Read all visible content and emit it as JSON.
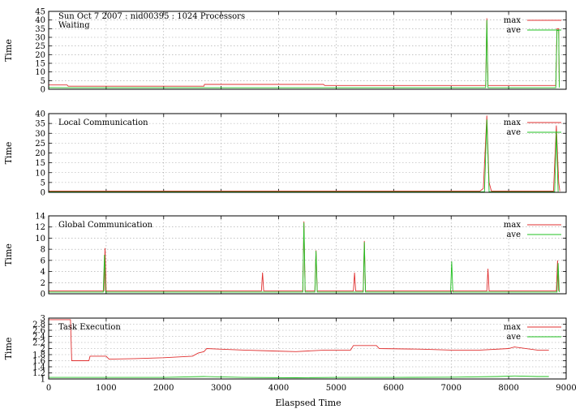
{
  "figure": {
    "header": "Sun Oct 7 2007 : nid00395 : 1024 Processors",
    "xlabel": "Elaspsed Time",
    "x_ticks": [
      "0",
      "1000",
      "2000",
      "3000",
      "4000",
      "5000",
      "6000",
      "7000",
      "8000",
      "9000"
    ]
  },
  "colors": {
    "max": "#e03030",
    "ave": "#20c020",
    "grid": "#a0a0a0"
  },
  "chart_data": [
    {
      "type": "line",
      "title": "Waiting",
      "xlabel": "Elaspsed Time",
      "ylabel": "Time",
      "xlim": [
        0,
        9000
      ],
      "ylim": [
        0,
        45
      ],
      "y_ticks": [
        "0",
        "5",
        "10",
        "15",
        "20",
        "25",
        "30",
        "35",
        "40",
        "45"
      ],
      "legend": "top-right",
      "grid": true,
      "series": [
        {
          "name": "max",
          "points": [
            [
              0,
              2.5
            ],
            [
              320,
              2.5
            ],
            [
              340,
              1.8
            ],
            [
              2700,
              1.8
            ],
            [
              2710,
              2.8
            ],
            [
              4780,
              2.8
            ],
            [
              4800,
              2.2
            ],
            [
              7600,
              2.2
            ],
            [
              7620,
              41
            ],
            [
              7640,
              2.2
            ],
            [
              8820,
              2.2
            ],
            [
              8840,
              35
            ],
            [
              8870,
              35
            ],
            [
              8880,
              2.5
            ]
          ]
        },
        {
          "name": "ave",
          "points": [
            [
              0,
              1.0
            ],
            [
              340,
              0.9
            ],
            [
              7600,
              0.9
            ],
            [
              7620,
              40
            ],
            [
              7640,
              0.9
            ],
            [
              8820,
              0.9
            ],
            [
              8840,
              34
            ],
            [
              8870,
              34
            ],
            [
              8880,
              1
            ]
          ]
        }
      ],
      "annotations": [
        "Sun Oct 7 2007 : nid00395 : 1024 Processors",
        "Waiting"
      ]
    },
    {
      "type": "line",
      "title": "Local Communication",
      "xlabel": "Elaspsed Time",
      "ylabel": "Time",
      "xlim": [
        0,
        9000
      ],
      "ylim": [
        0,
        40
      ],
      "y_ticks": [
        "0",
        "5",
        "10",
        "15",
        "20",
        "25",
        "30",
        "35",
        "40"
      ],
      "legend": "top-right",
      "grid": true,
      "series": [
        {
          "name": "max",
          "points": [
            [
              0,
              0.6
            ],
            [
              7500,
              0.6
            ],
            [
              7560,
              2
            ],
            [
              7620,
              39
            ],
            [
              7660,
              5
            ],
            [
              7700,
              0.6
            ],
            [
              8780,
              0.6
            ],
            [
              8830,
              34
            ],
            [
              8870,
              5
            ],
            [
              8890,
              0.6
            ]
          ]
        },
        {
          "name": "ave",
          "points": [
            [
              0,
              0.3
            ],
            [
              7580,
              0.3
            ],
            [
              7620,
              37
            ],
            [
              7660,
              0.3
            ],
            [
              8800,
              0.3
            ],
            [
              8830,
              31
            ],
            [
              8860,
              0.3
            ]
          ]
        }
      ],
      "annotations": [
        "Local Communication"
      ]
    },
    {
      "type": "line",
      "title": "Global Communication",
      "xlabel": "Elaspsed Time",
      "ylabel": "Time",
      "xlim": [
        0,
        9000
      ],
      "ylim": [
        0,
        14
      ],
      "y_ticks": [
        "0",
        "2",
        "4",
        "6",
        "8",
        "10",
        "12",
        "14"
      ],
      "legend": "top-right",
      "grid": true,
      "series": [
        {
          "name": "max",
          "points": [
            [
              0,
              0.5
            ],
            [
              960,
              0.5
            ],
            [
              980,
              8.2
            ],
            [
              1000,
              0.5
            ],
            [
              3700,
              0.5
            ],
            [
              3720,
              3.8
            ],
            [
              3740,
              0.5
            ],
            [
              4420,
              0.5
            ],
            [
              4440,
              13
            ],
            [
              4460,
              0.5
            ],
            [
              4630,
              0.5
            ],
            [
              4650,
              7.8
            ],
            [
              4670,
              0.5
            ],
            [
              5300,
              0.5
            ],
            [
              5320,
              3.8
            ],
            [
              5340,
              0.5
            ],
            [
              5470,
              0.5
            ],
            [
              5490,
              9.5
            ],
            [
              5510,
              0.5
            ],
            [
              7620,
              0.5
            ],
            [
              7640,
              4.5
            ],
            [
              7660,
              0.5
            ],
            [
              8830,
              0.5
            ],
            [
              8850,
              6
            ],
            [
              8870,
              0.5
            ]
          ]
        },
        {
          "name": "ave",
          "points": [
            [
              0,
              0.3
            ],
            [
              950,
              0.3
            ],
            [
              970,
              7
            ],
            [
              990,
              0.3
            ],
            [
              4420,
              0.3
            ],
            [
              4440,
              12.8
            ],
            [
              4460,
              0.3
            ],
            [
              4630,
              0.3
            ],
            [
              4650,
              7.7
            ],
            [
              4670,
              0.3
            ],
            [
              5470,
              0.3
            ],
            [
              5490,
              9.3
            ],
            [
              5510,
              0.3
            ],
            [
              6990,
              0.3
            ],
            [
              7010,
              5.8
            ],
            [
              7030,
              0.3
            ],
            [
              8840,
              0.3
            ],
            [
              8860,
              5.5
            ],
            [
              8880,
              0.3
            ]
          ]
        }
      ],
      "annotations": [
        "Global Communication"
      ]
    },
    {
      "type": "line",
      "title": "Task Execution",
      "xlabel": "Elaspsed Time",
      "ylabel": "Time",
      "xlim": [
        0,
        9000
      ],
      "ylim": [
        1,
        3
      ],
      "y_ticks": [
        "1",
        "1.2",
        "1.4",
        "1.6",
        "1.8",
        "2",
        "2.2",
        "2.4",
        "2.6",
        "2.8",
        "3"
      ],
      "legend": "top-right",
      "grid": true,
      "series": [
        {
          "name": "max",
          "points": [
            [
              0,
              2.95
            ],
            [
              380,
              2.95
            ],
            [
              400,
              1.6
            ],
            [
              700,
              1.6
            ],
            [
              720,
              1.75
            ],
            [
              1000,
              1.75
            ],
            [
              1050,
              1.65
            ],
            [
              1500,
              1.67
            ],
            [
              2000,
              1.7
            ],
            [
              2500,
              1.75
            ],
            [
              2600,
              1.85
            ],
            [
              2700,
              1.9
            ],
            [
              2750,
              2.0
            ],
            [
              3000,
              1.98
            ],
            [
              3400,
              1.95
            ],
            [
              3900,
              1.92
            ],
            [
              4300,
              1.9
            ],
            [
              4800,
              1.95
            ],
            [
              5250,
              1.95
            ],
            [
              5300,
              2.1
            ],
            [
              5700,
              2.1
            ],
            [
              5750,
              2.0
            ],
            [
              6500,
              1.98
            ],
            [
              7000,
              1.95
            ],
            [
              7500,
              1.95
            ],
            [
              8000,
              2.0
            ],
            [
              8100,
              2.05
            ],
            [
              8500,
              1.95
            ],
            [
              8700,
              1.95
            ]
          ]
        },
        {
          "name": "ave",
          "points": [
            [
              0,
              1.05
            ],
            [
              1000,
              1.05
            ],
            [
              2000,
              1.05
            ],
            [
              2700,
              1.08
            ],
            [
              3400,
              1.05
            ],
            [
              4300,
              1.04
            ],
            [
              5000,
              1.05
            ],
            [
              6000,
              1.05
            ],
            [
              7000,
              1.06
            ],
            [
              7800,
              1.08
            ],
            [
              8100,
              1.1
            ],
            [
              8500,
              1.08
            ],
            [
              8700,
              1.08
            ]
          ]
        }
      ],
      "annotations": [
        "Task Execution"
      ]
    }
  ]
}
